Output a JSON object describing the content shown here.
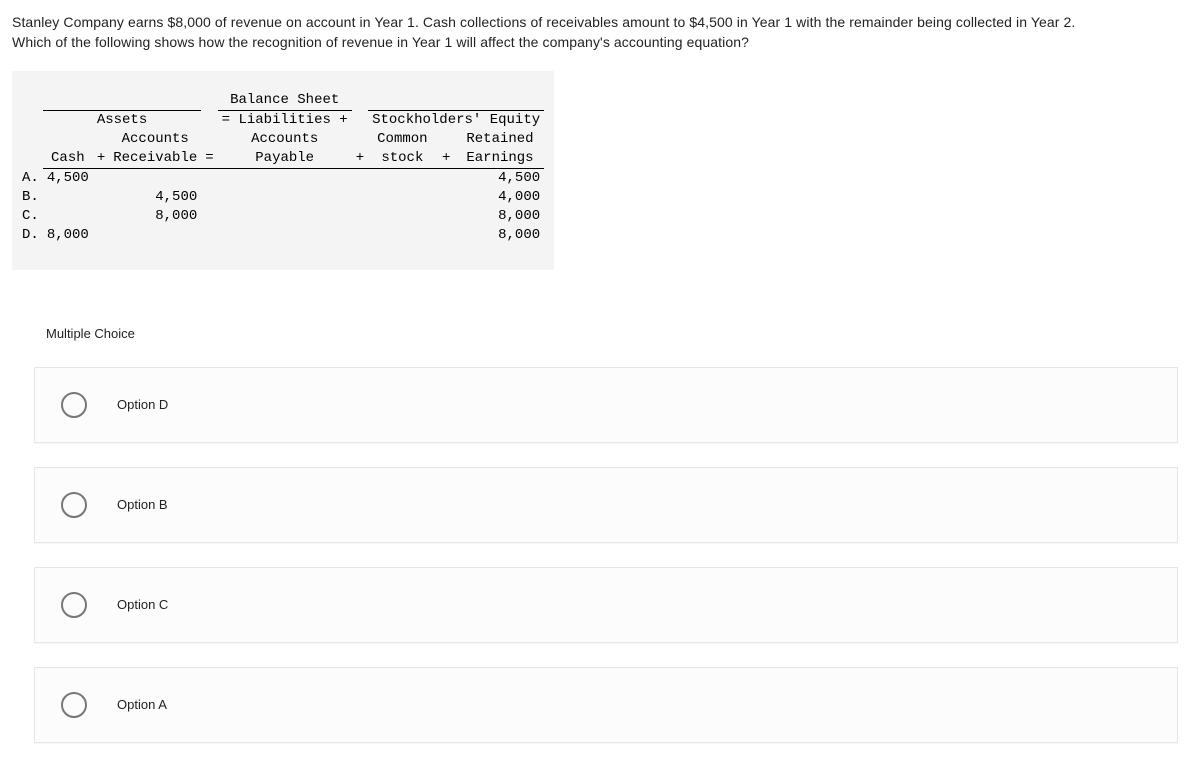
{
  "question": {
    "line1": "Stanley Company earns $8,000 of revenue on account in Year 1. Cash collections of receivables amount to $4,500 in Year 1 with the remainder being collected in Year 2.",
    "line2": "Which of the following shows how the recognition of revenue in Year 1 will affect the company's accounting equation?"
  },
  "table": {
    "background": "#f4f4f4",
    "font_family": "monospace",
    "header1": {
      "balance_sheet": "Balance Sheet"
    },
    "header2": {
      "assets": "Assets",
      "eq_liab": "= Liabilities +",
      "equity": "Stockholders' Equity"
    },
    "header3": {
      "cash": "Cash",
      "plus1": "+",
      "ar_top": "Accounts",
      "ar_bot": "Receivable",
      "eq": "=",
      "ap_top": "Accounts",
      "ap_bot": "Payable",
      "plus2": "+",
      "cs_top": "Common",
      "cs_bot": "stock",
      "plus3": "+",
      "re_top": "Retained",
      "re_bot": "Earnings"
    },
    "rows": [
      {
        "label": "A.",
        "cash": "4,500",
        "ar": "",
        "ap": "",
        "cs": "",
        "re": "4,500"
      },
      {
        "label": "B.",
        "cash": "",
        "ar": "4,500",
        "ap": "",
        "cs": "",
        "re": "4,000"
      },
      {
        "label": "C.",
        "cash": "",
        "ar": "8,000",
        "ap": "",
        "cs": "",
        "re": "8,000"
      },
      {
        "label": "D.",
        "cash": "8,000",
        "ar": "",
        "ap": "",
        "cs": "",
        "re": "8,000"
      }
    ]
  },
  "mc_label": "Multiple Choice",
  "options": [
    {
      "label": "Option D"
    },
    {
      "label": "Option B"
    },
    {
      "label": "Option C"
    },
    {
      "label": "Option A"
    }
  ],
  "colors": {
    "page_bg": "#ffffff",
    "text": "#222222",
    "option_border": "#e6e6e6",
    "option_bg": "#fcfcfc",
    "radio_border": "#777777"
  }
}
